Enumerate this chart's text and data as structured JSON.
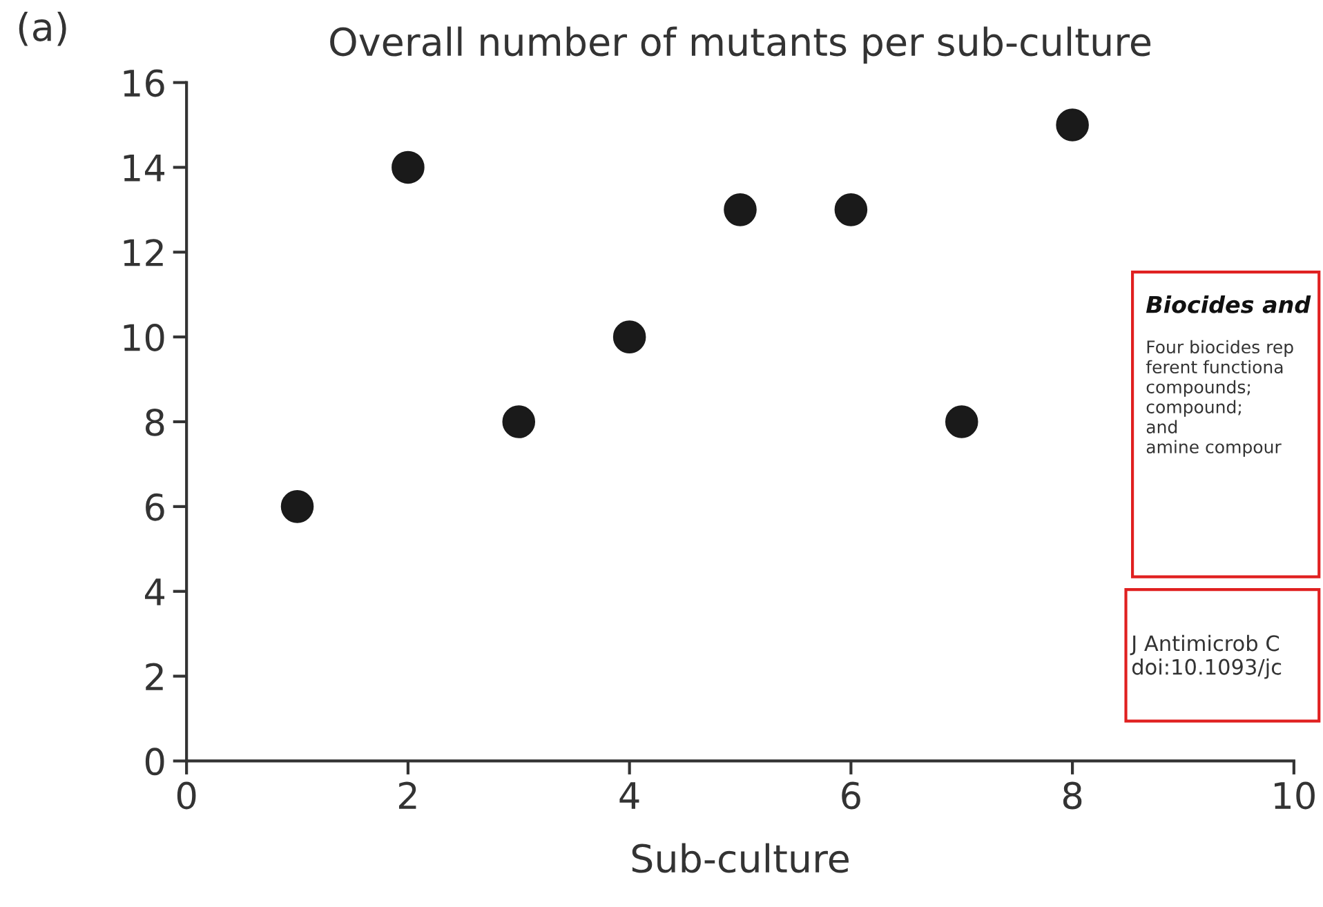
{
  "chart_data": {
    "type": "scatter",
    "title": "Overall number of mutants per sub-culture",
    "xlabel": "Sub-culture",
    "x": [
      1,
      2,
      3,
      4,
      5,
      6,
      7,
      8
    ],
    "series": [
      {
        "color": "#1a1a1a",
        "values": [
          6,
          14,
          8,
          10,
          13,
          13,
          8,
          15
        ]
      }
    ],
    "xlim": [
      0,
      10
    ],
    "xticks": [
      0,
      2,
      4,
      6,
      8,
      10
    ],
    "ylim": [
      0,
      16
    ],
    "yticks": [
      0,
      2,
      4,
      6,
      8,
      10,
      12,
      14,
      16
    ],
    "grid": false,
    "legend": false,
    "marker": "circle",
    "annotations": [
      "(a)",
      "Biocides and",
      "Four biocides rep\nferent functiona\ncompounds;\ncompound;\nand\namine compour",
      "J Antimicrob C\ndoi:10.1093/jc"
    ]
  }
}
